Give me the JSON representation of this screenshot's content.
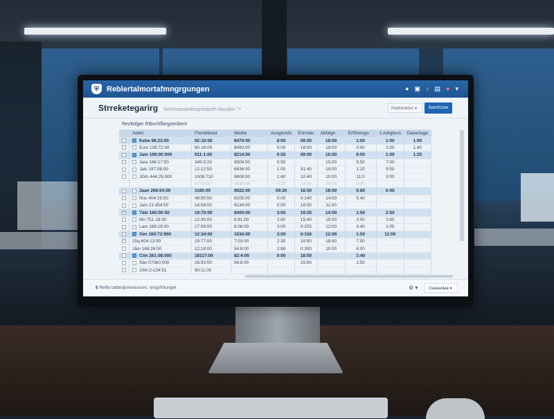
{
  "app": {
    "title": "Reblertalmortafmngrgungen",
    "header_icons": [
      "chat-icon",
      "print-icon",
      "bell-icon",
      "save-icon",
      "user-icon",
      "chevron-down-icon"
    ]
  },
  "subheader": {
    "title": "Strreketegarirg",
    "hint": "Sehrlotanoedergchiderth käsuber \">",
    "dropdown": "Rebfomkten",
    "button": "Setrofcone"
  },
  "section_label": "Reztlolger Rtbvchflargoenbenr",
  "table": {
    "columns": [
      "Aeten",
      "Fremdbzed",
      "Webte",
      "Ausglondn",
      "Eninster",
      "Abfalgn",
      "Erfßhengo",
      "2.Adrgburs",
      "Dauertage"
    ],
    "rows": [
      {
        "cb": false,
        "sel": true,
        "hl": true,
        "cells": [
          "Kebe 98:22:00",
          "92:10:00",
          "8479:00",
          "8:00",
          "09:00",
          "18:00",
          "1:00",
          "1:00",
          "1:90"
        ]
      },
      {
        "cb": false,
        "sel": false,
        "cells": [
          "Eunt 108:72:00",
          "80-16:00",
          "8490:00",
          "0:00",
          "18:00",
          "18:00",
          "0:00",
          "1:00",
          "1:40"
        ]
      },
      {
        "cb": false,
        "sel": true,
        "hl": true,
        "cells": [
          "Jam 109:00:000",
          "911-1:00",
          "8214:00",
          "0:50",
          "09:00",
          "10:00",
          "9:00",
          "1:00",
          "1:25"
        ]
      },
      {
        "cb": false,
        "sel": false,
        "cells": [
          "Jara 196:17:50",
          "345:0:20",
          "9508:00",
          "0:50",
          "",
          "15:00",
          "5:50",
          "7:00",
          ""
        ]
      },
      {
        "cb": false,
        "sel": false,
        "cells": [
          "Jalu 197:08:00",
          "12:12:50",
          "6838:00",
          "1:00",
          "91:40",
          "19:00",
          "1:20",
          "9:50",
          ""
        ]
      },
      {
        "cb": false,
        "sel": false,
        "cells": [
          "JGm 444:25:000",
          "1006:710",
          "9608:00",
          "1:40",
          "10:40",
          "10:00",
          "11:0",
          "3:00",
          ""
        ]
      },
      {
        "faint": true,
        "cells": [
          "",
          "17:58:00",
          "3430:06",
          "0:20",
          "13:40",
          "34:00",
          "9:00",
          "",
          ""
        ]
      },
      {
        "cb": false,
        "sel": false,
        "hl": true,
        "cells": [
          "Jaan 296:04:00",
          "1160:00",
          "9922:00",
          "09:30",
          "18:50",
          "18:00",
          "5:80",
          "0:00",
          ""
        ]
      },
      {
        "cb": false,
        "sel": false,
        "cells": [
          "Nnc-404:25:50",
          "49:90:50",
          "8105:00",
          "0:00",
          "0:140",
          "14:00",
          "5:40",
          "",
          ""
        ]
      },
      {
        "cb": false,
        "sel": false,
        "cells": [
          "Jam 21:454:50",
          "14:08:00",
          "8134:00",
          "0:00",
          "18:00",
          "11:00",
          "",
          "",
          ""
        ]
      },
      {
        "cb": true,
        "sel": true,
        "hl": true,
        "cells": [
          "Täle 160:00:50",
          "19:70:00",
          "8400:00",
          "3:00",
          "19:25",
          "14:00",
          "1:50",
          "2:50",
          ""
        ]
      },
      {
        "cb": false,
        "sel": false,
        "cells": [
          "Mn 751-18:50",
          "12:30:00",
          "8:81:00",
          "2:60",
          "15:40",
          "15:00",
          "3:00",
          "2:60",
          ""
        ]
      },
      {
        "cb": false,
        "sel": false,
        "cells": [
          "Lam 168:18:00",
          "17:99:00",
          "8:08:00",
          "3:00",
          "0:255",
          "12:00",
          "3:40",
          "1:05",
          ""
        ]
      },
      {
        "cb": false,
        "sel": true,
        "hl": true,
        "cells": [
          "Xim 160:72:900",
          "12:34:00",
          "1034:00",
          "3:00",
          "0:150",
          "12:00",
          "1:50",
          "11:00",
          ""
        ]
      },
      {
        "cb": true,
        "sel": null,
        "cells": [
          "15q-604:13:50",
          "19:77:00",
          "7:03:00",
          "2:30",
          "18:90",
          "18:40",
          "7:50",
          "",
          ""
        ]
      },
      {
        "cb": false,
        "sel": null,
        "cells": [
          "Jäm 168:26:50",
          "12:18:00",
          "54:8:00",
          "2:88",
          "0:300",
          "10:00",
          "6:00",
          "",
          ""
        ]
      },
      {
        "cb": false,
        "sel": true,
        "hl": true,
        "cells": [
          "Ctm 261:08:000",
          "18117:00",
          "82:4:00",
          "0:00",
          "18:00",
          "",
          "1:40",
          "",
          ""
        ]
      },
      {
        "cb": false,
        "sel": false,
        "cells": [
          "Sän 07360:000",
          "16:93:00",
          "56:8:00",
          "",
          "15:90",
          "",
          "1:50",
          "",
          ""
        ]
      },
      {
        "cb": false,
        "sel": false,
        "cells": [
          "10m:2-134:51",
          "90:11:00",
          "",
          "",
          "",
          "",
          "",
          "",
          ""
        ]
      }
    ]
  },
  "footer": {
    "text": "Refte tatlbrdjsnorassom, oingsfritunget",
    "button": "Geekanlee"
  },
  "colors": {
    "accent": "#1f63b3",
    "header": "#2866a8",
    "row_highlight": "#cfe0f0"
  }
}
